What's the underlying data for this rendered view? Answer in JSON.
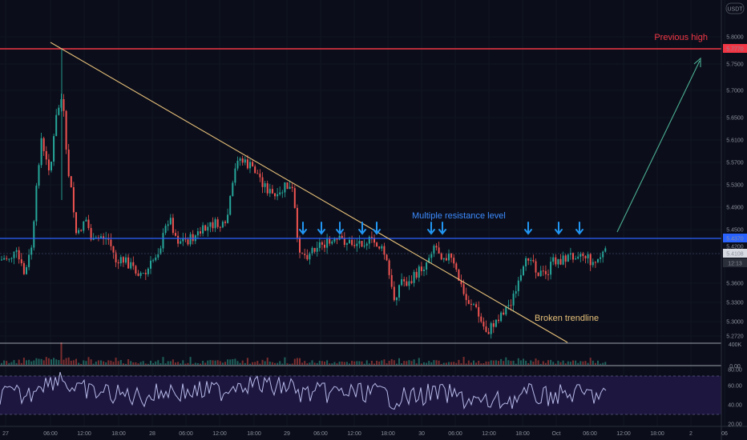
{
  "symbol_currency": "USDT",
  "colors": {
    "background": "#0b0e1a",
    "up": "#26a69a",
    "down": "#ef5350",
    "resistance": "#2962ff",
    "previous_high": "#f23645",
    "trendline": "#e8c07a",
    "arrow": "#2196f3",
    "projection": "#4caf93",
    "rsi": "#b7b9e8",
    "rsi_band": "#1d1740"
  },
  "annotations": {
    "previous_high": "Previous high",
    "resistance": "Multiple resistance level",
    "trendline": "Broken trendline"
  },
  "price_tags": {
    "previous_high": "5.7770",
    "resistance": "5.4370",
    "last": "5.4108",
    "countdown": "12:13",
    "hidden": "5.4200"
  },
  "volume_label": "400K",
  "rsi_zero_label": "0.00",
  "chart_data": {
    "type": "candlestick",
    "y_ticks": [
      "5.8000",
      "5.7500",
      "5.7000",
      "5.6500",
      "5.6100",
      "5.5700",
      "5.5300",
      "5.4900",
      "5.4500",
      "5.3600",
      "5.3300",
      "5.3000",
      "5.2720"
    ],
    "x_ticks": [
      "27",
      "06:00",
      "12:00",
      "18:00",
      "28",
      "06:00",
      "12:00",
      "18:00",
      "29",
      "06:00",
      "12:00",
      "18:00",
      "30",
      "06:00",
      "12:00",
      "18:00",
      "Oct",
      "06:00",
      "12:00",
      "18:00",
      "2",
      "06"
    ],
    "rsi_ticks": [
      "80.00",
      "60.00",
      "40.00",
      "20.00"
    ],
    "levels": {
      "previous_high": 5.777,
      "resistance": 5.437
    },
    "resistance_touch_count": 10
  }
}
